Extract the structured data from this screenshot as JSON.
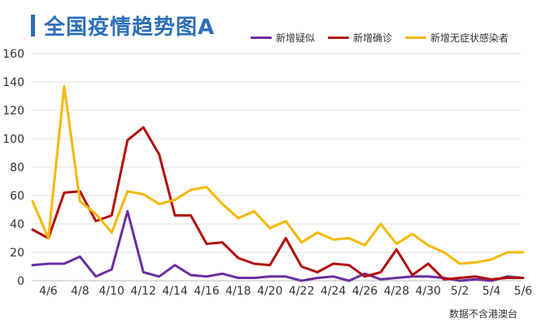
{
  "chart_data": {
    "type": "line",
    "title": "全国疫情趋势图A",
    "xlabel": "",
    "ylabel": "",
    "ylim": [
      0,
      160
    ],
    "yticks": [
      0,
      20,
      40,
      60,
      80,
      100,
      120,
      140,
      160
    ],
    "grid": true,
    "legend_position": "top-right",
    "x": [
      "4/5",
      "4/6",
      "4/7",
      "4/8",
      "4/9",
      "4/10",
      "4/11",
      "4/12",
      "4/13",
      "4/14",
      "4/15",
      "4/16",
      "4/17",
      "4/18",
      "4/19",
      "4/20",
      "4/21",
      "4/22",
      "4/23",
      "4/24",
      "4/25",
      "4/26",
      "4/27",
      "4/28",
      "4/29",
      "4/30",
      "5/1",
      "5/2",
      "5/3",
      "5/4",
      "5/5",
      "5/6"
    ],
    "xtick_labels": [
      "4/6",
      "4/8",
      "4/10",
      "4/12",
      "4/14",
      "4/16",
      "4/18",
      "4/20",
      "4/22",
      "4/24",
      "4/26",
      "4/28",
      "4/30",
      "5/2",
      "5/4",
      "5/6"
    ],
    "series": [
      {
        "name": "新增疑似",
        "color": "#6a2fa0",
        "values": [
          11,
          12,
          12,
          17,
          3,
          8,
          49,
          6,
          3,
          11,
          4,
          3,
          5,
          2,
          2,
          3,
          3,
          0,
          2,
          3,
          0,
          5,
          1,
          2,
          3,
          3,
          2,
          0,
          1,
          0,
          3,
          2
        ]
      },
      {
        "name": "新增确诊",
        "color": "#b30d0d",
        "values": [
          36,
          30,
          62,
          63,
          42,
          46,
          99,
          108,
          89,
          46,
          46,
          26,
          27,
          16,
          12,
          11,
          30,
          10,
          6,
          12,
          11,
          3,
          6,
          22,
          4,
          12,
          1,
          2,
          3,
          1,
          2,
          2
        ]
      },
      {
        "name": "新增无症状感染者",
        "color": "#f5b800",
        "values": [
          56,
          30,
          137,
          56,
          47,
          34,
          63,
          61,
          54,
          57,
          64,
          66,
          54,
          44,
          49,
          37,
          42,
          27,
          34,
          29,
          30,
          25,
          40,
          26,
          33,
          25,
          20,
          12,
          13,
          15,
          20,
          20
        ]
      }
    ]
  },
  "footnote": "数据不含港澳台"
}
